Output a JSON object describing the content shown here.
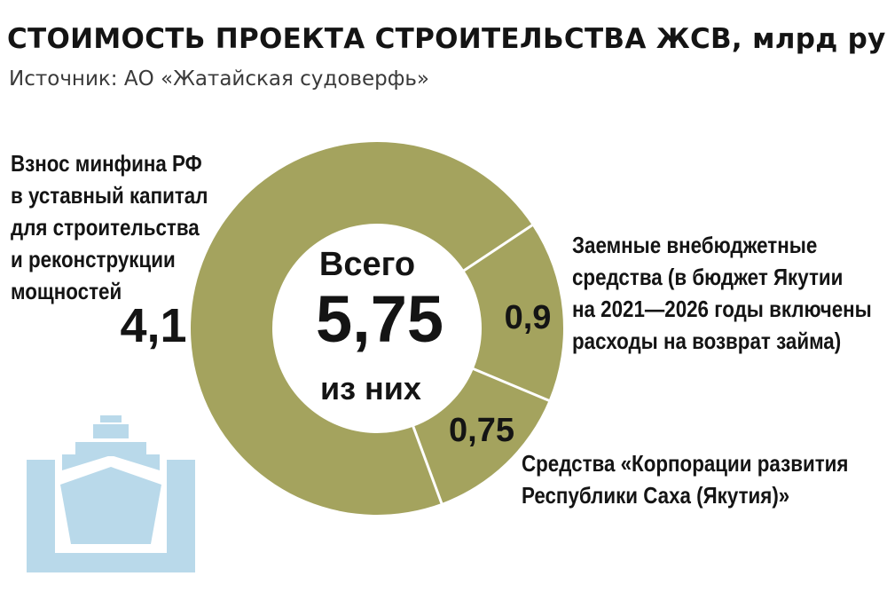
{
  "chart_data": {
    "type": "pie",
    "title": "СТОИМОСТЬ ПРОЕКТА СТРОИТЕЛЬСТВА ЖСВ, млрд руб.",
    "subtitle": "Источник: АО «Жатайская судоверфь»",
    "center": {
      "line1": "Всего",
      "total": "5,75",
      "line2": "из них"
    },
    "slices": [
      {
        "label_lines": [
          "Взнос минфина РФ",
          "в уставный капитал",
          "для строительства",
          "и реконструкции",
          "мощностей"
        ],
        "value": 4.1,
        "value_text": "4,1",
        "color": "#a4a35e"
      },
      {
        "label_lines": [
          "Заемные внебюджетные",
          "средства (в бюджет Якутии",
          "на 2021—2026 годы включены",
          "расходы на возврат займа)"
        ],
        "value": 0.9,
        "value_text": "0,9",
        "color": "#a4a35e"
      },
      {
        "label_lines": [
          "Средства «Корпорации развития",
          "Республики Саха (Якутия)»"
        ],
        "value": 0.75,
        "value_text": "0,75",
        "color": "#a4a35e"
      }
    ],
    "colors": {
      "slice": "#a4a35e",
      "separator": "#ffffff",
      "center": "#ffffff",
      "ship_icon": "#b9d9ea"
    }
  }
}
